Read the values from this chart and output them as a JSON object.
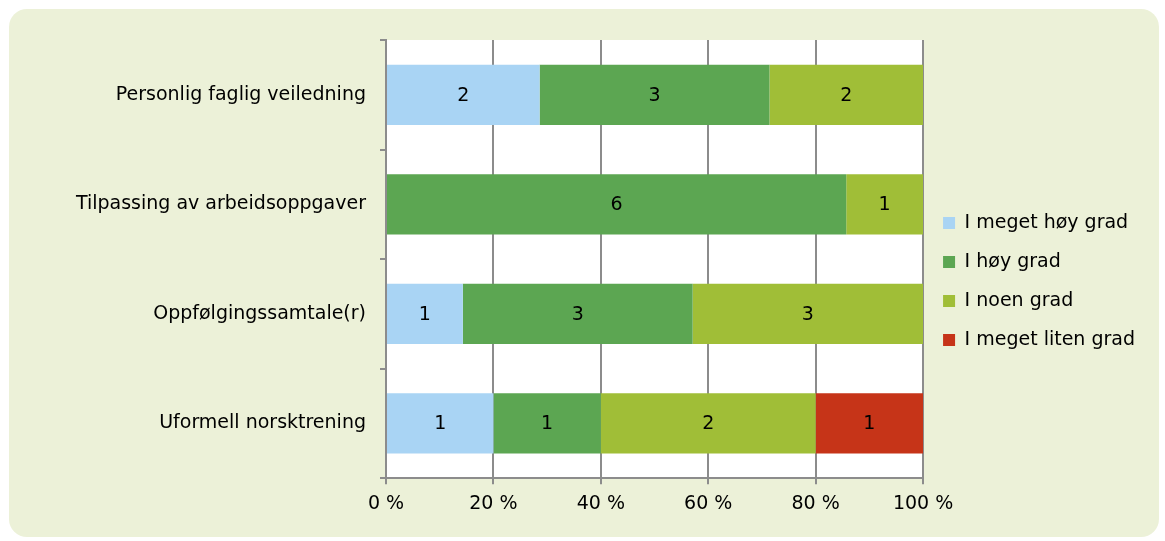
{
  "chart_data": {
    "type": "bar",
    "orientation": "horizontal",
    "stacked": true,
    "categories": [
      "Personlig faglig veiledning",
      "Tilpassing av arbeidsoppgaver",
      "Oppfølgingssamtale(r)",
      "Uformell norsktrening"
    ],
    "series": [
      {
        "name": "I meget høy grad",
        "color": "#a9d4f4",
        "values": [
          28.6,
          null,
          14.3,
          20
        ]
      },
      {
        "name": "I høy grad",
        "color": "#5ca652",
        "values": [
          42.8,
          85.7,
          42.8,
          20
        ]
      },
      {
        "name": "I noen grad",
        "color": "#a0be37",
        "values": [
          28.6,
          14.3,
          42.9,
          40
        ]
      },
      {
        "name": "I meget liten grad",
        "color": "#c63418",
        "values": [
          null,
          null,
          null,
          20
        ]
      }
    ],
    "annotations": [
      "2",
      "3",
      "2",
      "6",
      "1",
      "1",
      "3",
      "3",
      "1",
      "1",
      "2",
      "1"
    ],
    "xlim": [
      0,
      100
    ],
    "xticks": [
      {
        "value": 0,
        "label": "0 %"
      },
      {
        "value": 20,
        "label": "20 %"
      },
      {
        "value": 40,
        "label": "40 %"
      },
      {
        "value": 60,
        "label": "60 %"
      },
      {
        "value": 80,
        "label": "80 %"
      },
      {
        "value": 100,
        "label": "100 %"
      }
    ],
    "grid": "x",
    "legend": "right"
  }
}
